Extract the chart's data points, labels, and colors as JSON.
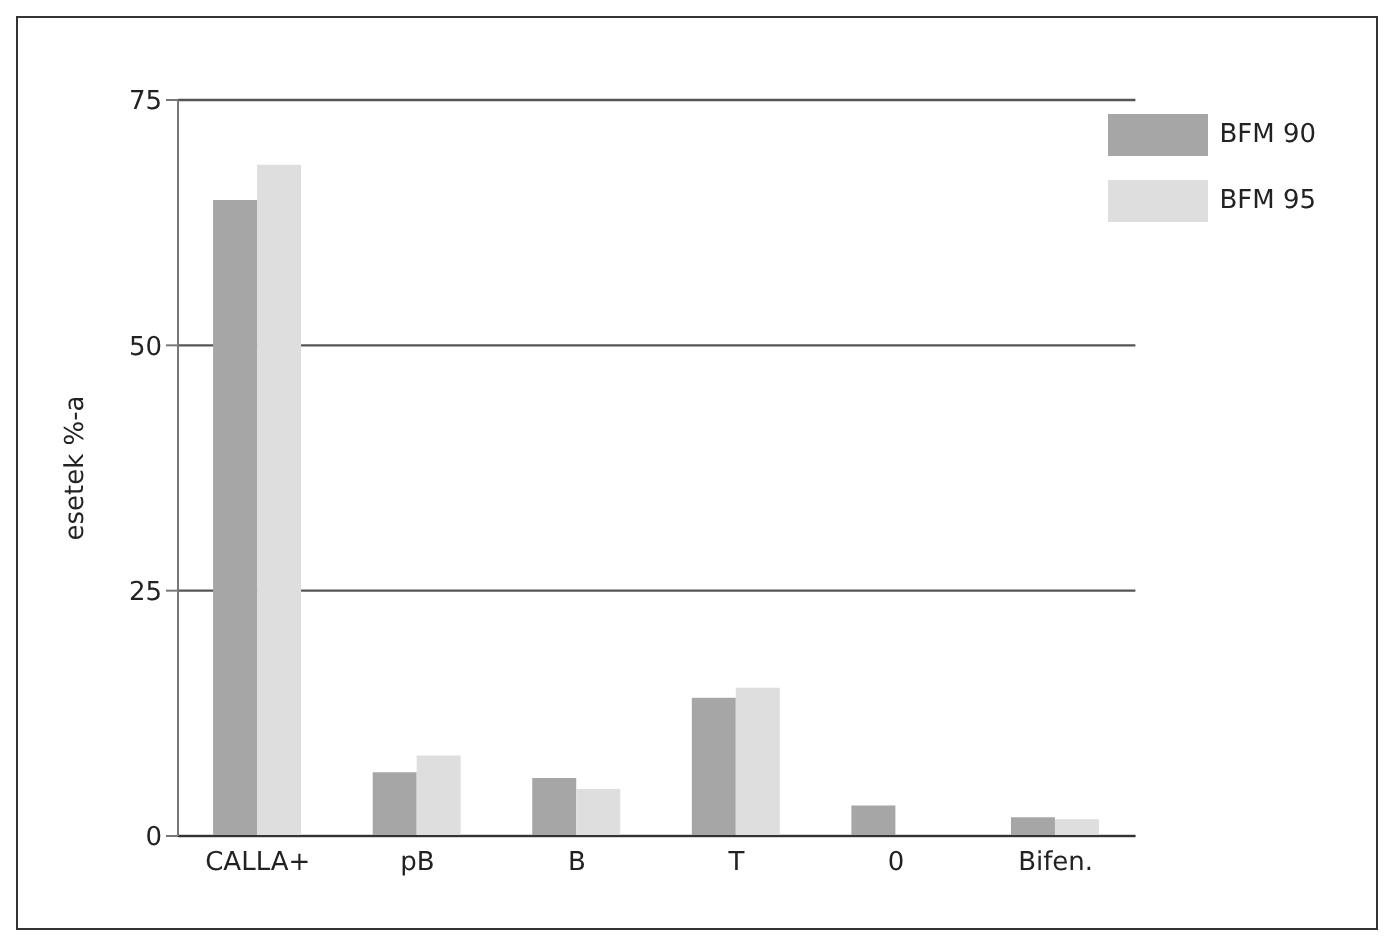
{
  "chart_data": {
    "type": "bar",
    "ylabel": "esetek %-a",
    "categories": [
      "CALLA+",
      "pB",
      "B",
      "T",
      "0",
      "Bifen."
    ],
    "series": [
      {
        "name": "BFM 90",
        "color": "#a6a6a6",
        "values": [
          64.8,
          6.5,
          5.9,
          14.1,
          3.1,
          1.9
        ]
      },
      {
        "name": "BFM 95",
        "color": "#dedede",
        "values": [
          68.4,
          8.2,
          4.8,
          15.1,
          0,
          1.7
        ]
      }
    ],
    "ylim": [
      0,
      75
    ],
    "yticks": [
      0,
      25,
      50,
      75
    ],
    "grid": "y",
    "legend": "top right"
  }
}
